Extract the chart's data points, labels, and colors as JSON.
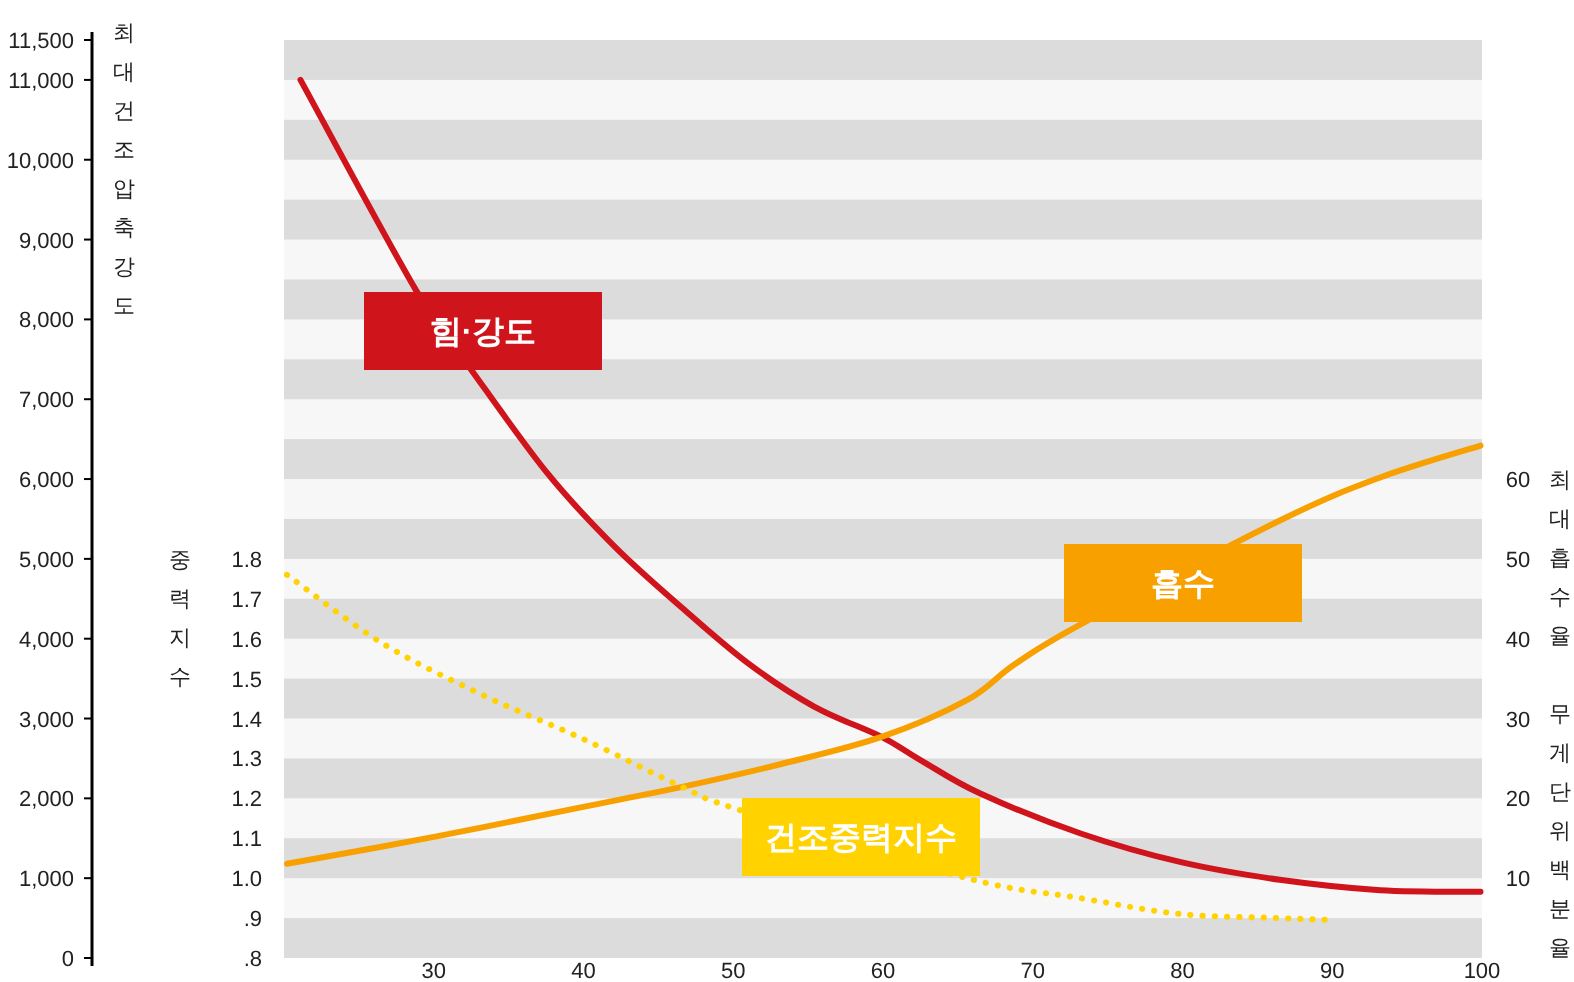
{
  "chart_data": {
    "type": "line",
    "ylabel": "최대건조압축강도",
    "y2label": "중력지수",
    "y3label": "최대흡수율 무게단위백분율",
    "xlim": [
      20,
      100
    ],
    "xticks": [
      30,
      40,
      50,
      60,
      70,
      80,
      90,
      100
    ],
    "ylim": [
      0,
      11500
    ],
    "yticks": [
      0,
      {
        "value": 1000,
        "label": "1,000"
      },
      {
        "value": 2000,
        "label": "2,000"
      },
      {
        "value": 3000,
        "label": "3,000"
      },
      {
        "value": 4000,
        "label": "4,000"
      },
      {
        "value": 5000,
        "label": "5,000"
      },
      {
        "value": 6000,
        "label": "6,000"
      },
      {
        "value": 7000,
        "label": "7,000"
      },
      {
        "value": 8000,
        "label": "8,000"
      },
      {
        "value": 9000,
        "label": "9,000"
      },
      {
        "value": 10000,
        "label": "10,000"
      },
      {
        "value": 11000,
        "label": "11,000"
      },
      {
        "value": 11500,
        "label": "11,500"
      }
    ],
    "y2lim": [
      0.8,
      3.1
    ],
    "y2ticks": [
      {
        "value": 0.8,
        "label": ".8"
      },
      {
        "value": 0.9,
        "label": ".9"
      },
      {
        "value": 1.0,
        "label": "1.0"
      },
      1.1,
      1.2,
      1.3,
      1.4,
      1.5,
      1.6,
      1.7,
      1.8
    ],
    "y3lim": [
      0,
      115
    ],
    "y3ticks": [
      10,
      20,
      30,
      40,
      50,
      60
    ],
    "bands": [
      {
        "axis": "y",
        "from": 11000,
        "to": 11500,
        "color": "#dcdcdc"
      },
      {
        "axis": "y",
        "from": 10000,
        "to": 10500,
        "color": "#dcdcdc"
      },
      {
        "axis": "y",
        "from": 9000,
        "to": 9500,
        "color": "#dcdcdc"
      },
      {
        "axis": "y",
        "from": 8000,
        "to": 8500,
        "color": "#dcdcdc"
      },
      {
        "axis": "y",
        "from": 7000,
        "to": 7500,
        "color": "#dcdcdc"
      },
      {
        "axis": "y",
        "from": 6000,
        "to": 6500,
        "color": "#dcdcdc"
      },
      {
        "axis": "y",
        "from": 5000,
        "to": 5500,
        "color": "#dcdcdc"
      },
      {
        "axis": "y",
        "from": 4000,
        "to": 4500,
        "color": "#dcdcdc"
      },
      {
        "axis": "y",
        "from": 3000,
        "to": 3500,
        "color": "#dcdcdc"
      },
      {
        "axis": "y",
        "from": 2000,
        "to": 2500,
        "color": "#dcdcdc"
      },
      {
        "axis": "y",
        "from": 1000,
        "to": 1500,
        "color": "#dcdcdc"
      },
      {
        "axis": "y",
        "from": 0,
        "to": 500,
        "color": "#dcdcdc"
      }
    ],
    "series": [
      {
        "name": "힘·강도",
        "color": "#d0141c",
        "axis": "y",
        "line_style": "solid",
        "x": [
          21.1,
          28.8,
          32.5,
          37.6,
          42.1,
          46.5,
          51,
          55.4,
          59.9,
          62.5,
          66.5,
          73.2,
          79.9,
          86.5,
          93.2,
          99.9
        ],
        "values": [
          11000,
          8370,
          7370,
          6070,
          5150,
          4400,
          3690,
          3150,
          2770,
          2480,
          2060,
          1560,
          1200,
          980,
          850,
          830
        ]
      },
      {
        "name": "흡수",
        "color": "#f7a000",
        "axis": "y3",
        "line_style": "solid",
        "x": [
          20.2,
          30.1,
          39.9,
          46.5,
          53.2,
          59.9,
          65.6,
          68.8,
          73.2,
          86.5,
          93.2,
          99.9
        ],
        "values": [
          11.8,
          15.2,
          18.9,
          21.4,
          24.3,
          27.7,
          32.3,
          36.8,
          41.8,
          54.8,
          60.2,
          64.2
        ]
      },
      {
        "name": "건조중력지수",
        "color": "#ffd200",
        "axis": "y2",
        "line_style": "dotted",
        "x": [
          20.2,
          26.5,
          33.2,
          39.9,
          46.5,
          50.5,
          65.6,
          73.2,
          79.9,
          86.5,
          90.1
        ],
        "values": [
          1.76,
          1.59,
          1.46,
          1.35,
          1.23,
          1.17,
          1.0,
          0.95,
          0.91,
          0.9,
          0.895
        ]
      }
    ]
  }
}
